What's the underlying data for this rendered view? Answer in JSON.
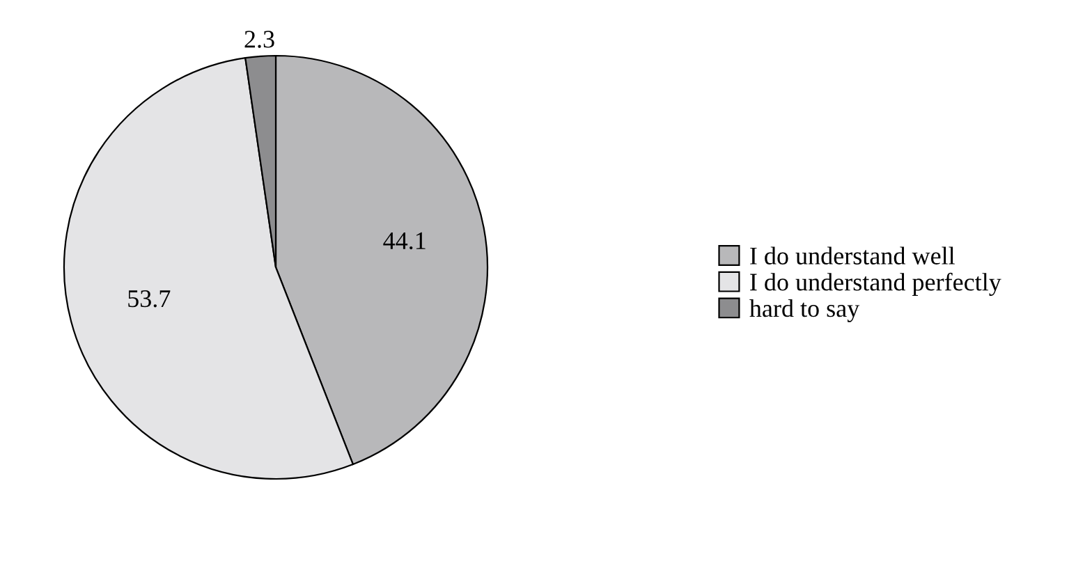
{
  "chart_data": {
    "type": "pie",
    "categories": [
      "I do understand well",
      "I do understand perfectly",
      "hard to say"
    ],
    "values": [
      44.1,
      53.7,
      2.3
    ],
    "colors": [
      "#b8b8ba",
      "#e4e4e6",
      "#8d8d8f"
    ],
    "data_labels": true,
    "legend": "right"
  }
}
